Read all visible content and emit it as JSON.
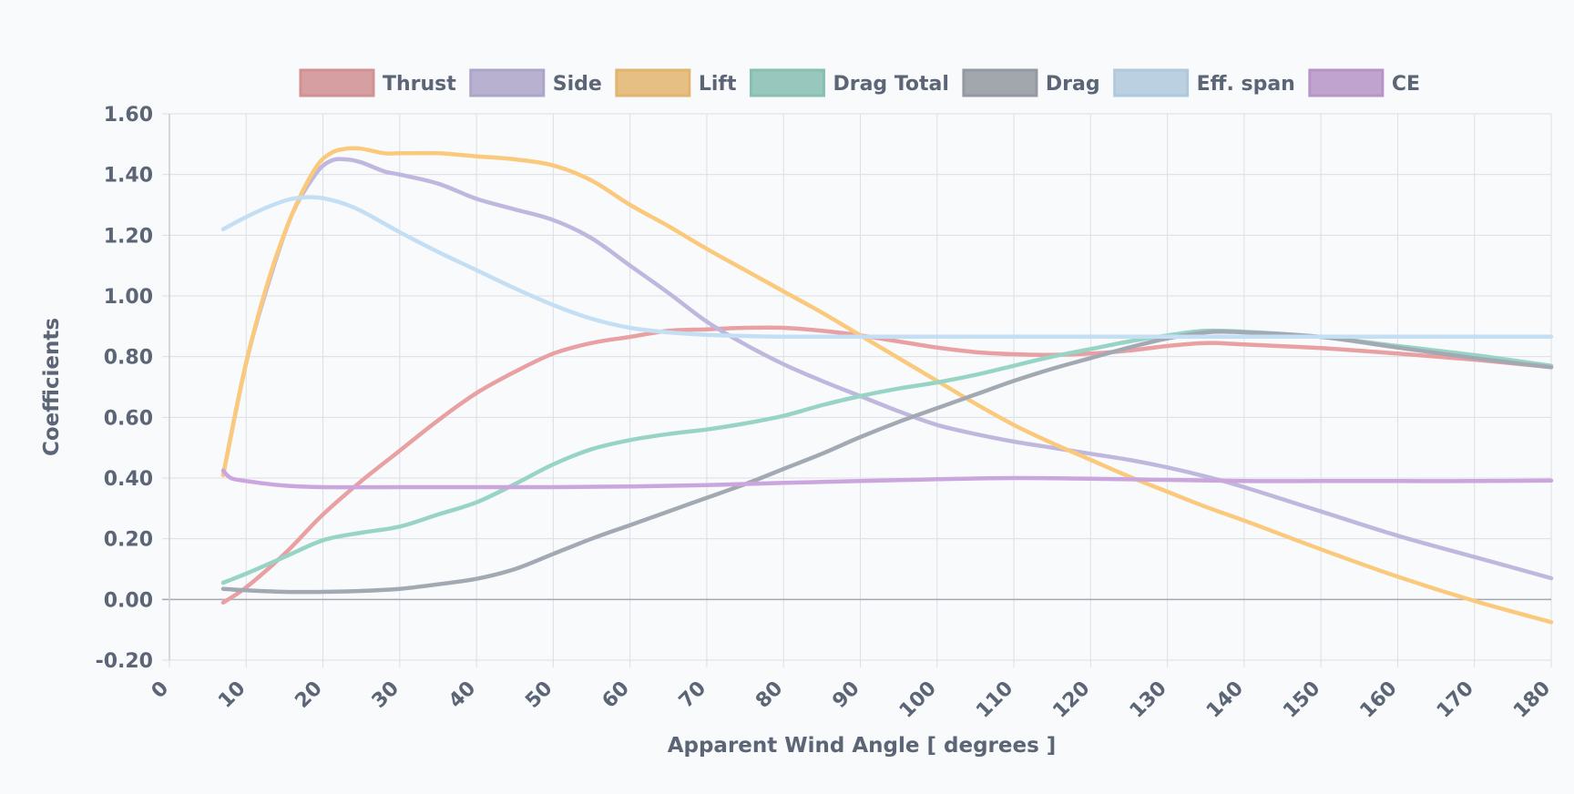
{
  "chart_data": {
    "type": "line",
    "title": "",
    "xlabel": "Apparent Wind Angle [ degrees ]",
    "ylabel": "Coefficients",
    "xlim": [
      0,
      180
    ],
    "ylim": [
      -0.2,
      1.6
    ],
    "x_ticks": [
      "0",
      "10",
      "20",
      "30",
      "40",
      "50",
      "60",
      "70",
      "80",
      "90",
      "100",
      "110",
      "120",
      "130",
      "140",
      "150",
      "160",
      "170",
      "180"
    ],
    "y_ticks": [
      "1.60",
      "1.40",
      "1.20",
      "1.00",
      "0.80",
      "0.60",
      "0.40",
      "0.20",
      "0.00",
      "-0.20"
    ],
    "grid": true,
    "legend_position": "top",
    "series": [
      {
        "name": "Thrust",
        "color": "#e8a0a2",
        "points": [
          [
            7,
            -0.01
          ],
          [
            10,
            0.04
          ],
          [
            15,
            0.15
          ],
          [
            20,
            0.28
          ],
          [
            25,
            0.39
          ],
          [
            30,
            0.49
          ],
          [
            35,
            0.59
          ],
          [
            40,
            0.68
          ],
          [
            45,
            0.75
          ],
          [
            50,
            0.81
          ],
          [
            55,
            0.845
          ],
          [
            60,
            0.865
          ],
          [
            65,
            0.885
          ],
          [
            70,
            0.89
          ],
          [
            75,
            0.895
          ],
          [
            80,
            0.895
          ],
          [
            85,
            0.885
          ],
          [
            90,
            0.87
          ],
          [
            95,
            0.85
          ],
          [
            100,
            0.83
          ],
          [
            105,
            0.815
          ],
          [
            110,
            0.808
          ],
          [
            115,
            0.806
          ],
          [
            120,
            0.81
          ],
          [
            125,
            0.82
          ],
          [
            130,
            0.835
          ],
          [
            135,
            0.845
          ],
          [
            140,
            0.84
          ],
          [
            150,
            0.828
          ],
          [
            160,
            0.81
          ],
          [
            170,
            0.79
          ],
          [
            180,
            0.765
          ]
        ]
      },
      {
        "name": "Side",
        "color": "#bfb7de",
        "points": [
          [
            7,
            0.41
          ],
          [
            10,
            0.78
          ],
          [
            13,
            1.05
          ],
          [
            16,
            1.27
          ],
          [
            19,
            1.4
          ],
          [
            21,
            1.445
          ],
          [
            23,
            1.45
          ],
          [
            25,
            1.44
          ],
          [
            28,
            1.41
          ],
          [
            30,
            1.4
          ],
          [
            35,
            1.37
          ],
          [
            40,
            1.32
          ],
          [
            45,
            1.285
          ],
          [
            50,
            1.25
          ],
          [
            55,
            1.19
          ],
          [
            60,
            1.1
          ],
          [
            65,
            1.01
          ],
          [
            70,
            0.915
          ],
          [
            75,
            0.84
          ],
          [
            80,
            0.775
          ],
          [
            85,
            0.72
          ],
          [
            90,
            0.67
          ],
          [
            95,
            0.62
          ],
          [
            100,
            0.575
          ],
          [
            105,
            0.545
          ],
          [
            110,
            0.52
          ],
          [
            115,
            0.5
          ],
          [
            120,
            0.48
          ],
          [
            125,
            0.46
          ],
          [
            130,
            0.435
          ],
          [
            135,
            0.405
          ],
          [
            140,
            0.37
          ],
          [
            150,
            0.29
          ],
          [
            160,
            0.21
          ],
          [
            170,
            0.14
          ],
          [
            180,
            0.07
          ]
        ]
      },
      {
        "name": "Lift",
        "color": "#fbc97b",
        "points": [
          [
            7,
            0.41
          ],
          [
            10,
            0.78
          ],
          [
            13,
            1.06
          ],
          [
            16,
            1.27
          ],
          [
            19,
            1.42
          ],
          [
            21,
            1.47
          ],
          [
            23,
            1.485
          ],
          [
            25,
            1.485
          ],
          [
            28,
            1.47
          ],
          [
            30,
            1.47
          ],
          [
            35,
            1.47
          ],
          [
            40,
            1.46
          ],
          [
            45,
            1.45
          ],
          [
            50,
            1.43
          ],
          [
            55,
            1.38
          ],
          [
            60,
            1.3
          ],
          [
            65,
            1.23
          ],
          [
            70,
            1.155
          ],
          [
            75,
            1.085
          ],
          [
            80,
            1.015
          ],
          [
            85,
            0.945
          ],
          [
            90,
            0.87
          ],
          [
            95,
            0.795
          ],
          [
            100,
            0.72
          ],
          [
            105,
            0.645
          ],
          [
            110,
            0.575
          ],
          [
            115,
            0.515
          ],
          [
            120,
            0.46
          ],
          [
            125,
            0.405
          ],
          [
            130,
            0.355
          ],
          [
            135,
            0.305
          ],
          [
            140,
            0.26
          ],
          [
            150,
            0.165
          ],
          [
            160,
            0.075
          ],
          [
            170,
            -0.005
          ],
          [
            180,
            -0.075
          ]
        ]
      },
      {
        "name": "Drag Total",
        "color": "#97d4c5",
        "points": [
          [
            7,
            0.055
          ],
          [
            10,
            0.085
          ],
          [
            15,
            0.14
          ],
          [
            20,
            0.195
          ],
          [
            25,
            0.22
          ],
          [
            30,
            0.24
          ],
          [
            35,
            0.28
          ],
          [
            40,
            0.32
          ],
          [
            45,
            0.38
          ],
          [
            50,
            0.445
          ],
          [
            55,
            0.495
          ],
          [
            60,
            0.525
          ],
          [
            65,
            0.545
          ],
          [
            70,
            0.56
          ],
          [
            75,
            0.58
          ],
          [
            80,
            0.605
          ],
          [
            85,
            0.64
          ],
          [
            90,
            0.67
          ],
          [
            95,
            0.695
          ],
          [
            100,
            0.715
          ],
          [
            105,
            0.74
          ],
          [
            110,
            0.77
          ],
          [
            115,
            0.8
          ],
          [
            120,
            0.825
          ],
          [
            125,
            0.85
          ],
          [
            130,
            0.87
          ],
          [
            135,
            0.885
          ],
          [
            140,
            0.882
          ],
          [
            150,
            0.865
          ],
          [
            160,
            0.835
          ],
          [
            170,
            0.805
          ],
          [
            180,
            0.77
          ]
        ]
      },
      {
        "name": "Drag",
        "color": "#a3a9b3",
        "points": [
          [
            7,
            0.035
          ],
          [
            10,
            0.03
          ],
          [
            15,
            0.025
          ],
          [
            20,
            0.025
          ],
          [
            25,
            0.028
          ],
          [
            30,
            0.035
          ],
          [
            35,
            0.05
          ],
          [
            40,
            0.068
          ],
          [
            45,
            0.1
          ],
          [
            50,
            0.15
          ],
          [
            55,
            0.2
          ],
          [
            60,
            0.245
          ],
          [
            65,
            0.29
          ],
          [
            70,
            0.335
          ],
          [
            75,
            0.38
          ],
          [
            80,
            0.43
          ],
          [
            85,
            0.48
          ],
          [
            90,
            0.535
          ],
          [
            95,
            0.585
          ],
          [
            100,
            0.63
          ],
          [
            105,
            0.675
          ],
          [
            110,
            0.72
          ],
          [
            115,
            0.76
          ],
          [
            120,
            0.795
          ],
          [
            125,
            0.83
          ],
          [
            130,
            0.86
          ],
          [
            135,
            0.88
          ],
          [
            140,
            0.88
          ],
          [
            150,
            0.865
          ],
          [
            160,
            0.83
          ],
          [
            170,
            0.795
          ],
          [
            180,
            0.765
          ]
        ]
      },
      {
        "name": "Eff. span",
        "color": "#c4dff4",
        "points": [
          [
            7,
            1.22
          ],
          [
            10,
            1.26
          ],
          [
            13,
            1.295
          ],
          [
            16,
            1.32
          ],
          [
            19,
            1.325
          ],
          [
            22,
            1.31
          ],
          [
            25,
            1.28
          ],
          [
            30,
            1.21
          ],
          [
            35,
            1.145
          ],
          [
            40,
            1.085
          ],
          [
            45,
            1.025
          ],
          [
            50,
            0.97
          ],
          [
            55,
            0.925
          ],
          [
            60,
            0.895
          ],
          [
            65,
            0.88
          ],
          [
            70,
            0.872
          ],
          [
            75,
            0.868
          ],
          [
            80,
            0.866
          ],
          [
            90,
            0.866
          ],
          [
            100,
            0.866
          ],
          [
            120,
            0.866
          ],
          [
            140,
            0.866
          ],
          [
            160,
            0.866
          ],
          [
            180,
            0.866
          ]
        ]
      },
      {
        "name": "CE",
        "color": "#cba5dd",
        "points": [
          [
            7,
            0.425
          ],
          [
            8,
            0.4
          ],
          [
            10,
            0.39
          ],
          [
            15,
            0.375
          ],
          [
            20,
            0.37
          ],
          [
            30,
            0.37
          ],
          [
            40,
            0.37
          ],
          [
            50,
            0.37
          ],
          [
            60,
            0.372
          ],
          [
            70,
            0.377
          ],
          [
            80,
            0.384
          ],
          [
            90,
            0.39
          ],
          [
            100,
            0.396
          ],
          [
            110,
            0.4
          ],
          [
            120,
            0.398
          ],
          [
            130,
            0.394
          ],
          [
            140,
            0.39
          ],
          [
            150,
            0.39
          ],
          [
            160,
            0.39
          ],
          [
            170,
            0.39
          ],
          [
            180,
            0.392
          ]
        ]
      }
    ]
  }
}
